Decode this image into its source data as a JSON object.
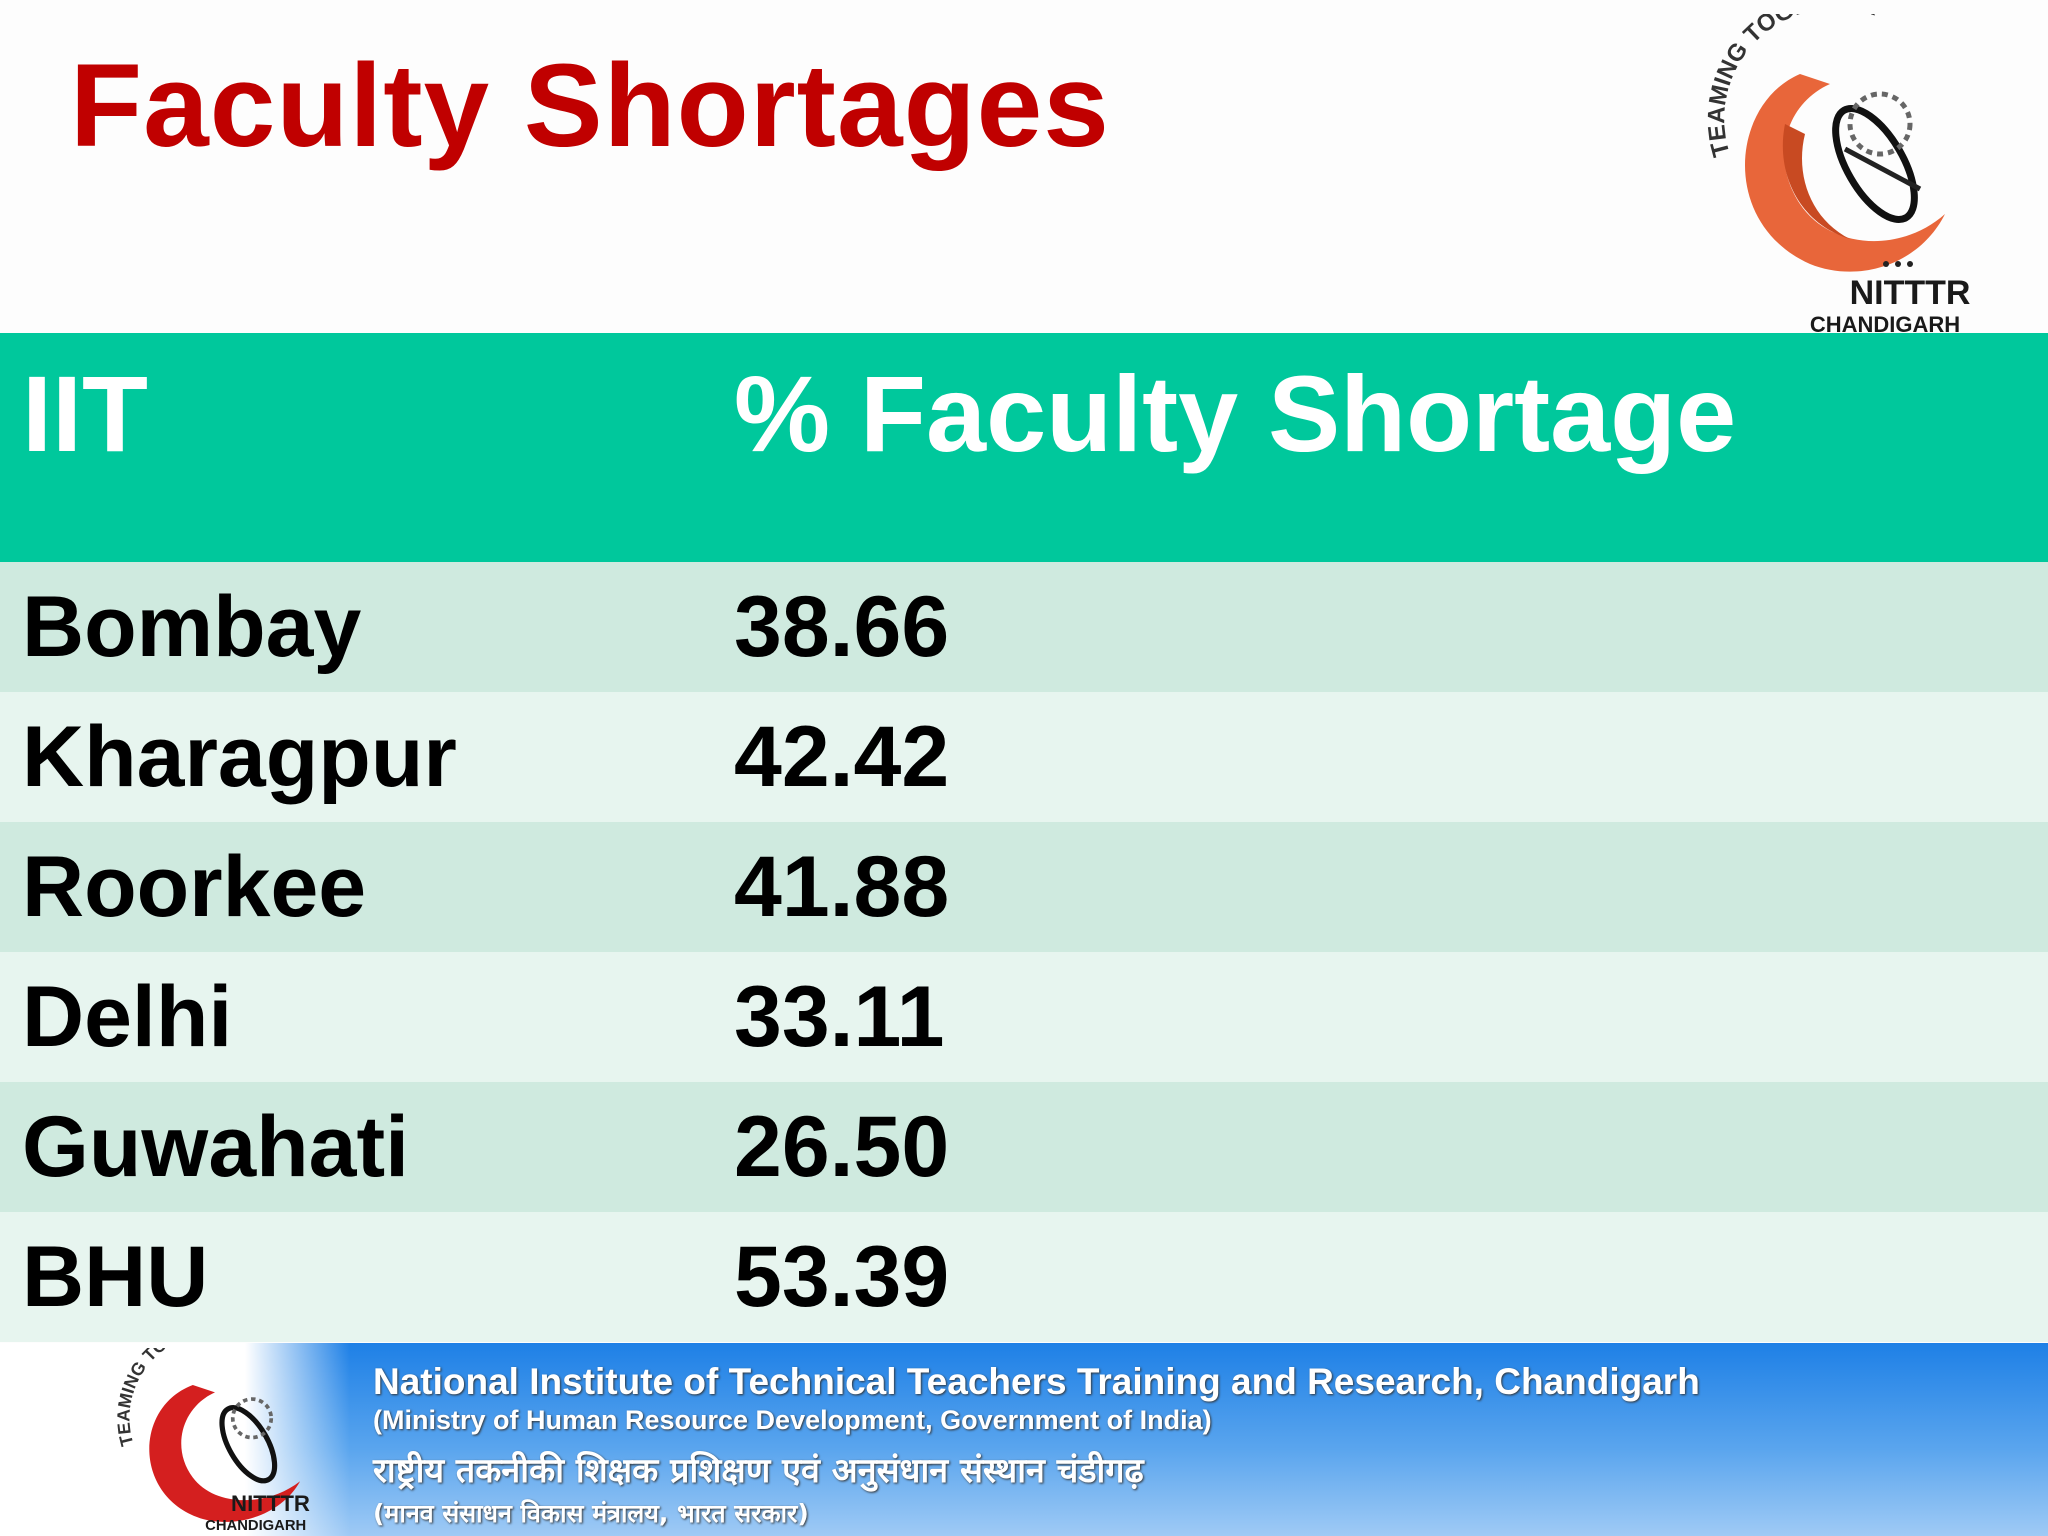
{
  "slide": {
    "title": "Faculty Shortages"
  },
  "logo": {
    "ring_text": "TEAMING TOGETHER",
    "name": "NITTTR",
    "city": "CHANDIGARH",
    "colors": {
      "orange": "#e8663a",
      "red": "#d41f1f"
    }
  },
  "table": {
    "headers": [
      "IIT",
      "% Faculty Shortage"
    ],
    "rows": [
      [
        "Bombay",
        "38.66"
      ],
      [
        "Kharagpur",
        "42.42"
      ],
      [
        "Roorkee",
        "41.88"
      ],
      [
        "Delhi",
        "33.11"
      ],
      [
        "Guwahati",
        "26.50"
      ],
      [
        "BHU",
        "53.39"
      ]
    ],
    "colors": {
      "header": "#00c89c",
      "row_odd": "#cfeadf",
      "row_even": "#e7f5ef"
    }
  },
  "footer": {
    "line1": "National Institute of Technical Teachers Training and Research, Chandigarh",
    "line2": "(Ministry of Human Resource Development, Government of India)",
    "line3": "राष्ट्रीय तकनीकी शिक्षक प्रशिक्षण एवं अनुसंधान संस्थान चंडीगढ़",
    "line4": "(मानव संसाधन विकास मंत्रालय, भारत सरकार)"
  }
}
